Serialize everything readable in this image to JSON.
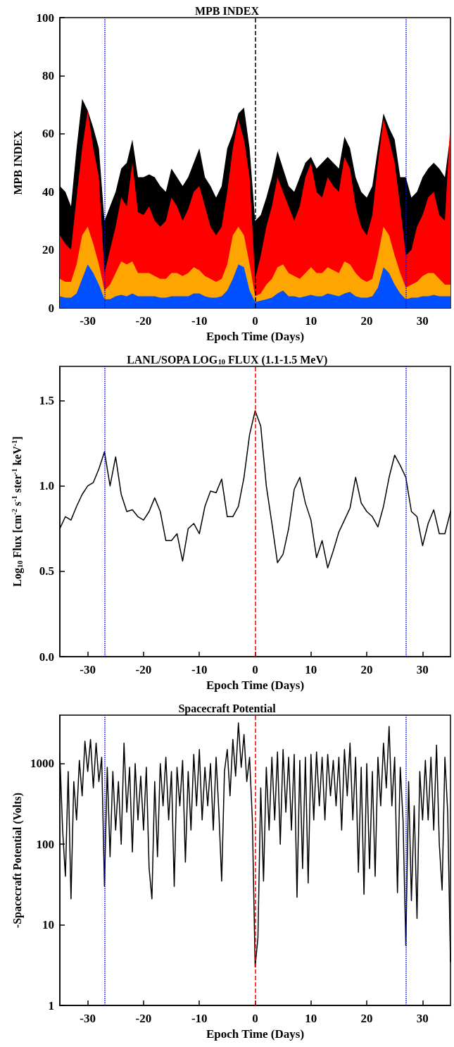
{
  "chart_data": [
    {
      "type": "area",
      "title": "MPB INDEX",
      "xlabel": "Epoch Time (Days)",
      "ylabel": "MPB INDEX",
      "xlim": [
        -35,
        35
      ],
      "xticks": [
        -30,
        -20,
        -10,
        0,
        10,
        20,
        30
      ],
      "ylim": [
        0,
        100
      ],
      "yticks": [
        0,
        20,
        40,
        60,
        80,
        100
      ],
      "grid": false,
      "marker": "none",
      "x": [
        -35,
        -34,
        -33,
        -32,
        -31,
        -30,
        -29,
        -28,
        -27,
        -26,
        -25,
        -24,
        -23,
        -22,
        -21,
        -20,
        -19,
        -18,
        -17,
        -16,
        -15,
        -14,
        -13,
        -12,
        -11,
        -10,
        -9,
        -8,
        -7,
        -6,
        -5,
        -4,
        -3,
        -2,
        -1,
        0,
        1,
        2,
        3,
        4,
        5,
        6,
        7,
        8,
        9,
        10,
        11,
        12,
        13,
        14,
        15,
        16,
        17,
        18,
        19,
        20,
        21,
        22,
        23,
        24,
        25,
        26,
        27,
        28,
        29,
        30,
        31,
        32,
        33,
        34,
        35
      ],
      "series": [
        {
          "color": "#000000",
          "values": [
            42,
            40,
            35,
            55,
            72,
            68,
            62,
            55,
            30,
            35,
            40,
            48,
            50,
            58,
            45,
            45,
            46,
            45,
            42,
            40,
            48,
            45,
            42,
            45,
            50,
            55,
            45,
            42,
            38,
            42,
            55,
            60,
            67,
            69,
            55,
            30,
            32,
            38,
            45,
            54,
            48,
            42,
            40,
            45,
            50,
            52,
            48,
            50,
            52,
            50,
            48,
            59,
            55,
            45,
            40,
            38,
            42,
            55,
            67,
            62,
            58,
            45,
            45,
            38,
            40,
            45,
            48,
            50,
            48,
            45,
            60
          ]
        },
        {
          "color": "#ff0000",
          "values": [
            25,
            22,
            20,
            38,
            55,
            68,
            55,
            45,
            12,
            20,
            28,
            38,
            35,
            50,
            33,
            32,
            35,
            30,
            28,
            30,
            38,
            35,
            30,
            34,
            40,
            42,
            35,
            28,
            25,
            28,
            40,
            55,
            65,
            58,
            45,
            10,
            18,
            28,
            35,
            45,
            40,
            35,
            30,
            35,
            45,
            50,
            40,
            38,
            45,
            42,
            40,
            52,
            48,
            35,
            28,
            25,
            32,
            50,
            65,
            58,
            50,
            35,
            18,
            20,
            28,
            32,
            38,
            40,
            32,
            30,
            65
          ]
        },
        {
          "color": "#ffa500",
          "values": [
            10,
            9,
            9,
            15,
            25,
            28,
            22,
            15,
            6,
            8,
            12,
            16,
            15,
            16,
            12,
            12,
            12,
            11,
            10,
            10,
            12,
            12,
            11,
            12,
            14,
            13,
            11,
            10,
            9,
            10,
            15,
            25,
            28,
            25,
            15,
            4,
            5,
            8,
            10,
            14,
            15,
            12,
            11,
            10,
            12,
            14,
            12,
            12,
            14,
            13,
            12,
            16,
            15,
            12,
            10,
            9,
            10,
            18,
            28,
            25,
            18,
            12,
            7,
            8,
            9,
            11,
            12,
            12,
            10,
            8,
            8
          ]
        },
        {
          "color": "#0050ff",
          "values": [
            4,
            3.5,
            3.5,
            5,
            10,
            15,
            12,
            8,
            3,
            3,
            4,
            4.5,
            4,
            5,
            4,
            4,
            4,
            4,
            3.5,
            3.5,
            4,
            4,
            4,
            4,
            5,
            5,
            4,
            3.5,
            3.5,
            4,
            6,
            10,
            15,
            14,
            6,
            2,
            2.5,
            3,
            3.5,
            5,
            6,
            4,
            4,
            3.5,
            4,
            4.5,
            4,
            4,
            5,
            4.5,
            4,
            5,
            5.5,
            4,
            3.5,
            3.5,
            4,
            7,
            14,
            12,
            8,
            5,
            3,
            3.5,
            3.5,
            4,
            4,
            4.5,
            4,
            4,
            4
          ]
        }
      ],
      "ref_lines": [
        {
          "axis": "x",
          "value": -27,
          "color": "#0000ff",
          "line_style": "dotted"
        },
        {
          "axis": "x",
          "value": 0,
          "color": "#000000",
          "line_style": "dashed"
        },
        {
          "axis": "x",
          "value": 27,
          "color": "#0000ff",
          "line_style": "dotted"
        }
      ]
    },
    {
      "type": "line",
      "title": "LANL/SOPA LOG$_{10}$ FLUX (1.1-1.5 MeV)",
      "xlabel": "Epoch Time (Days)",
      "ylabel": "Log$_{10}$ Flux [cm$^{-2}$ s$^{-1}$ ster$^{-1}$ keV$^{-1}$]",
      "xlim": [
        -35,
        35
      ],
      "xticks": [
        -30,
        -20,
        -10,
        0,
        10,
        20,
        30
      ],
      "ylim": [
        0,
        1.7
      ],
      "yticks": [
        {
          "value": 0,
          "label": "0.0"
        },
        {
          "value": 0.5,
          "label": "0.5"
        },
        {
          "value": 1,
          "label": "1.0"
        },
        {
          "value": 1.5,
          "label": "1.5"
        }
      ],
      "grid": false,
      "marker": "none",
      "line_style": "solid",
      "x": [
        -35,
        -34,
        -33,
        -32,
        -31,
        -30,
        -29,
        -28,
        -27,
        -26,
        -25,
        -24,
        -23,
        -22,
        -21,
        -20,
        -19,
        -18,
        -17,
        -16,
        -15,
        -14,
        -13,
        -12,
        -11,
        -10,
        -9,
        -8,
        -7,
        -6,
        -5,
        -4,
        -3,
        -2,
        -1,
        0,
        1,
        2,
        3,
        4,
        5,
        6,
        7,
        8,
        9,
        10,
        11,
        12,
        13,
        14,
        15,
        16,
        17,
        18,
        19,
        20,
        21,
        22,
        23,
        24,
        25,
        26,
        27,
        28,
        29,
        30,
        31,
        32,
        33,
        34,
        35
      ],
      "series": [
        {
          "color": "#000000",
          "values": [
            0.75,
            0.82,
            0.8,
            0.88,
            0.95,
            1.0,
            1.02,
            1.1,
            1.2,
            1.0,
            1.17,
            0.95,
            0.85,
            0.86,
            0.82,
            0.8,
            0.85,
            0.93,
            0.85,
            0.68,
            0.68,
            0.72,
            0.56,
            0.75,
            0.78,
            0.72,
            0.88,
            0.97,
            0.96,
            1.04,
            0.82,
            0.82,
            0.88,
            1.05,
            1.3,
            1.44,
            1.35,
            1.0,
            0.78,
            0.55,
            0.6,
            0.75,
            0.98,
            1.05,
            0.9,
            0.8,
            0.58,
            0.68,
            0.52,
            0.62,
            0.73,
            0.8,
            0.87,
            1.05,
            0.9,
            0.85,
            0.82,
            0.76,
            0.88,
            1.05,
            1.18,
            1.12,
            1.05,
            0.85,
            0.82,
            0.65,
            0.78,
            0.86,
            0.72,
            0.72,
            0.85
          ]
        }
      ],
      "ref_lines": [
        {
          "axis": "x",
          "value": -27,
          "color": "#0000ff",
          "line_style": "dotted"
        },
        {
          "axis": "x",
          "value": 0,
          "color": "#ff0000",
          "line_style": "dashed"
        },
        {
          "axis": "x",
          "value": 27,
          "color": "#0000ff",
          "line_style": "dotted"
        }
      ]
    },
    {
      "type": "line",
      "title": "Spacecraft Potential",
      "xlabel": "Epoch Time (Days)",
      "ylabel": "-Spacecraft Potential (Volts)",
      "xlim": [
        -35,
        35
      ],
      "xticks": [
        -30,
        -20,
        -10,
        0,
        10,
        20,
        30
      ],
      "ylim": [
        1,
        4000
      ],
      "yticks": [
        1,
        10,
        100,
        1000
      ],
      "log": "y",
      "grid": false,
      "marker": "none",
      "line_style": "solid",
      "x": [
        -35,
        -34.5,
        -34,
        -33.5,
        -33,
        -32.5,
        -32,
        -31.5,
        -31,
        -30.5,
        -30,
        -29.5,
        -29,
        -28.5,
        -28,
        -27.5,
        -27,
        -26.5,
        -26,
        -25.5,
        -25,
        -24.5,
        -24,
        -23.5,
        -23,
        -22.5,
        -22,
        -21.5,
        -21,
        -20.5,
        -20,
        -19.5,
        -19,
        -18.5,
        -18,
        -17.5,
        -17,
        -16.5,
        -16,
        -15.5,
        -15,
        -14.5,
        -14,
        -13.5,
        -13,
        -12.5,
        -12,
        -11.5,
        -11,
        -10.5,
        -10,
        -9.5,
        -9,
        -8.5,
        -8,
        -7.5,
        -7,
        -6.5,
        -6,
        -5.5,
        -5,
        -4.5,
        -4,
        -3.5,
        -3,
        -2.5,
        -2,
        -1.5,
        -1,
        -0.5,
        0,
        0.5,
        1,
        1.5,
        2,
        2.5,
        3,
        3.5,
        4,
        4.5,
        5,
        5.5,
        6,
        6.5,
        7,
        7.5,
        8,
        8.5,
        9,
        9.5,
        10,
        10.5,
        11,
        11.5,
        12,
        12.5,
        13,
        13.5,
        14,
        14.5,
        15,
        15.5,
        16,
        16.5,
        17,
        17.5,
        18,
        18.5,
        19,
        19.5,
        20,
        20.5,
        21,
        21.5,
        22,
        22.5,
        23,
        23.5,
        24,
        24.5,
        25,
        25.5,
        26,
        26.5,
        27,
        27.5,
        28,
        28.5,
        29,
        29.5,
        30,
        30.5,
        31,
        31.5,
        32,
        32.5,
        33,
        33.5,
        34,
        34.5,
        35
      ],
      "series": [
        {
          "color": "#000000",
          "values": [
            1300,
            150,
            40,
            800,
            21,
            600,
            200,
            1100,
            400,
            1900,
            800,
            2000,
            500,
            1800,
            600,
            1200,
            30,
            900,
            70,
            800,
            150,
            600,
            100,
            1800,
            250,
            900,
            80,
            1000,
            200,
            700,
            150,
            900,
            50,
            21,
            600,
            70,
            1000,
            300,
            1200,
            200,
            800,
            30,
            900,
            300,
            1100,
            60,
            800,
            150,
            1300,
            300,
            1500,
            200,
            900,
            300,
            1000,
            150,
            1200,
            250,
            35,
            800,
            1500,
            400,
            2000,
            700,
            3200,
            900,
            2300,
            600,
            1200,
            200,
            3,
            7,
            500,
            35,
            900,
            150,
            1200,
            200,
            1400,
            100,
            1500,
            250,
            1200,
            150,
            1300,
            22,
            1100,
            50,
            1200,
            33,
            1300,
            200,
            1400,
            300,
            1200,
            200,
            1300,
            400,
            1100,
            300,
            1200,
            150,
            1500,
            400,
            1800,
            200,
            1200,
            45,
            900,
            24,
            1000,
            50,
            800,
            40,
            1200,
            300,
            1800,
            500,
            2900,
            300,
            1200,
            25,
            900,
            200,
            5.5,
            600,
            20,
            300,
            12,
            800,
            200,
            1100,
            200,
            1200,
            150,
            1700,
            100,
            27,
            1200,
            250,
            3.5
          ]
        }
      ],
      "ref_lines": [
        {
          "axis": "x",
          "value": -27,
          "color": "#0000ff",
          "line_style": "dotted"
        },
        {
          "axis": "x",
          "value": 0,
          "color": "#ff0000",
          "line_style": "dashed"
        },
        {
          "axis": "x",
          "value": 27,
          "color": "#0000ff",
          "line_style": "dotted"
        }
      ]
    }
  ]
}
